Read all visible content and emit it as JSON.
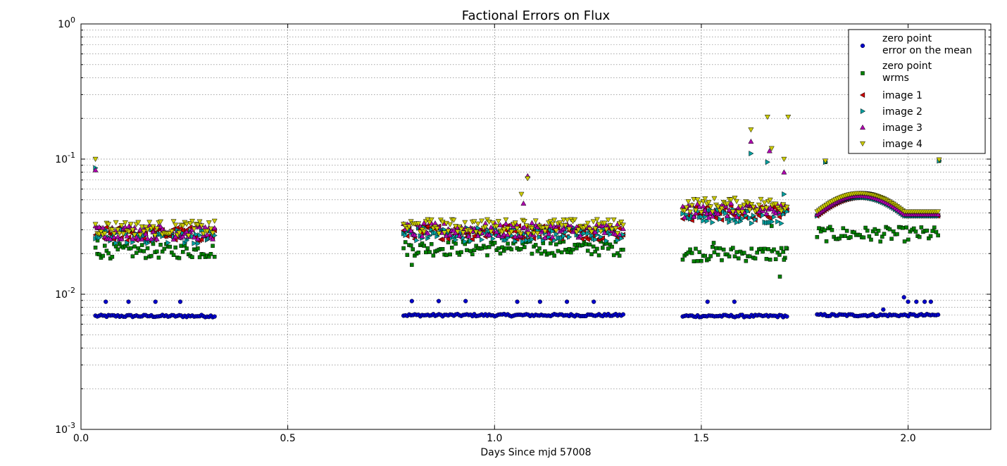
{
  "chart_data": {
    "type": "scatter",
    "title": "Factional Errors on Flux",
    "xlabel": "Days Since mjd 57008",
    "ylabel": "",
    "xlim": [
      0.0,
      2.2
    ],
    "ylim": [
      0.001,
      1.0
    ],
    "yscale": "log",
    "grid": true,
    "legend_position": "top-right",
    "xticks": [
      "0.0",
      "0.5",
      "1.0",
      "1.5",
      "2.0"
    ],
    "yticks": [
      {
        "base": "10",
        "exp": "-3"
      },
      {
        "base": "10",
        "exp": "-2"
      },
      {
        "base": "10",
        "exp": "-1"
      },
      {
        "base": "10",
        "exp": "0"
      }
    ],
    "segments": [
      [
        0.035,
        0.325
      ],
      [
        0.78,
        1.315
      ],
      [
        1.455,
        1.71
      ],
      [
        1.78,
        2.075
      ]
    ],
    "series": [
      {
        "name": "zero point\nerror on the mean",
        "marker": "circle",
        "color": "#0000cc",
        "segment_values": [
          0.0069,
          0.007,
          0.0069,
          0.007
        ],
        "extra_points": [
          [
            0.06,
            0.0088
          ],
          [
            0.115,
            0.0088
          ],
          [
            0.18,
            0.0088
          ],
          [
            0.24,
            0.0088
          ],
          [
            0.8,
            0.0089
          ],
          [
            0.865,
            0.0089
          ],
          [
            0.93,
            0.0089
          ],
          [
            1.055,
            0.0088
          ],
          [
            1.11,
            0.0088
          ],
          [
            1.175,
            0.0088
          ],
          [
            1.24,
            0.0088
          ],
          [
            1.515,
            0.0088
          ],
          [
            1.58,
            0.0088
          ],
          [
            1.99,
            0.0095
          ],
          [
            2.0,
            0.0088
          ],
          [
            2.02,
            0.0088
          ],
          [
            2.04,
            0.0088
          ],
          [
            2.055,
            0.0088
          ],
          [
            1.94,
            0.0077
          ]
        ]
      },
      {
        "name": "zero point\nwrms",
        "marker": "square",
        "color": "#008000",
        "segment_values": [
          0.021,
          0.022,
          0.02,
          0.028
        ],
        "extra_points": [
          [
            0.04,
            0.025
          ],
          [
            0.8,
            0.0165
          ],
          [
            1.53,
            0.024
          ],
          [
            1.67,
            0.032
          ],
          [
            1.69,
            0.0135
          ],
          [
            1.7,
            0.018
          ],
          [
            1.705,
            0.022
          ],
          [
            1.8,
            0.095
          ],
          [
            2.075,
            0.097
          ],
          [
            1.89,
            0.055
          ],
          [
            1.87,
            0.052
          ]
        ]
      },
      {
        "name": "image 1",
        "marker": "triangle-left",
        "color": "#cc0000",
        "segment_values": [
          0.028,
          0.029,
          0.04,
          0.04
        ],
        "extra_points": []
      },
      {
        "name": "image 2",
        "marker": "triangle-right",
        "color": "#00a0a0",
        "segment_values": [
          0.027,
          0.028,
          0.038,
          0.04
        ],
        "extra_points": [
          [
            0.035,
            0.086
          ],
          [
            1.62,
            0.11
          ],
          [
            1.66,
            0.095
          ],
          [
            1.7,
            0.055
          ],
          [
            1.8,
            0.095
          ],
          [
            2.075,
            0.097
          ]
        ]
      },
      {
        "name": "image 3",
        "marker": "triangle-up",
        "color": "#b000b0",
        "segment_values": [
          0.029,
          0.03,
          0.042,
          0.041
        ],
        "extra_points": [
          [
            0.035,
            0.083
          ],
          [
            1.62,
            0.135
          ],
          [
            1.665,
            0.115
          ],
          [
            1.08,
            0.075
          ],
          [
            1.07,
            0.047
          ],
          [
            1.7,
            0.08
          ]
        ]
      },
      {
        "name": "image 4",
        "marker": "triangle-down",
        "color": "#cccc00",
        "segment_values": [
          0.031,
          0.032,
          0.046,
          0.043
        ],
        "extra_points": [
          [
            0.035,
            0.1
          ],
          [
            1.66,
            0.205
          ],
          [
            1.71,
            0.205
          ],
          [
            1.62,
            0.165
          ],
          [
            1.67,
            0.12
          ],
          [
            1.08,
            0.072
          ],
          [
            1.065,
            0.055
          ],
          [
            1.7,
            0.1
          ],
          [
            1.8,
            0.097
          ],
          [
            2.075,
            0.099
          ]
        ]
      }
    ]
  }
}
